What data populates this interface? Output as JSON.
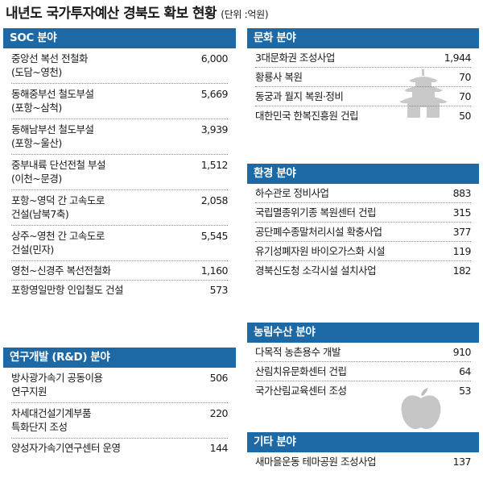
{
  "title": "내년도 국가투자예산 경북도 확보 현황",
  "unit": "(단위 :억원)",
  "sections": {
    "soc": {
      "header": "SOC 분야",
      "items": [
        {
          "name": "중앙선 복선 전철화\n(도담~영천)",
          "value": "6,000"
        },
        {
          "name": "동해중부선 철도부설\n(포항~삼척)",
          "value": "5,669"
        },
        {
          "name": "동해남부선 철도부설\n(포항~울산)",
          "value": "3,939"
        },
        {
          "name": "중부내륙 단선전철 부설\n(이천~문경)",
          "value": "1,512"
        },
        {
          "name": "포항~영덕 간 고속도로\n건설(남북7축)",
          "value": "2,058"
        },
        {
          "name": "상주~영천 간 고속도로\n건설(민자)",
          "value": "5,545"
        },
        {
          "name": "영천~신경주 복선전철화",
          "value": "1,160"
        },
        {
          "name": "포항영일만항 인입철도 건설",
          "value": "573"
        }
      ]
    },
    "rnd": {
      "header": "연구개발 (R&D) 분야",
      "items": [
        {
          "name": "방사광가속기 공동이용\n연구지원",
          "value": "506"
        },
        {
          "name": "차세대건설기계부품\n특화단지 조성",
          "value": "220"
        },
        {
          "name": "양성자가속기연구센터 운영",
          "value": "144"
        }
      ]
    },
    "culture": {
      "header": "문화 분야",
      "items": [
        {
          "name": "3대문화권 조성사업",
          "value": "1,944"
        },
        {
          "name": "황룡사 복원",
          "value": "70"
        },
        {
          "name": "동궁과 월지 복원·정비",
          "value": "70"
        },
        {
          "name": "대한민국 한복진흥원 건립",
          "value": "50"
        }
      ]
    },
    "environment": {
      "header": "환경 분야",
      "items": [
        {
          "name": "하수관로 정비사업",
          "value": "883"
        },
        {
          "name": "국립멸종위기종 복원센터 건립",
          "value": "315"
        },
        {
          "name": "공단폐수종말처리시설 확충사업",
          "value": "377"
        },
        {
          "name": "유기성폐자원 바이오가스화 시설",
          "value": "119"
        },
        {
          "name": "경북신도청 소각시설 설치사업",
          "value": "182"
        }
      ]
    },
    "agri": {
      "header": "농림수산 분야",
      "items": [
        {
          "name": "다목적 농촌용수 개발",
          "value": "910"
        },
        {
          "name": "산림치유문화센터 건립",
          "value": "64"
        },
        {
          "name": "국가산림교육센터 조성",
          "value": "53"
        }
      ]
    },
    "etc": {
      "header": "기타 분야",
      "items": [
        {
          "name": "새마을운동 테마공원 조성사업",
          "value": "137"
        }
      ]
    }
  },
  "decorations": {
    "pagoda": "pagoda-icon",
    "apple": "apple-icon"
  }
}
